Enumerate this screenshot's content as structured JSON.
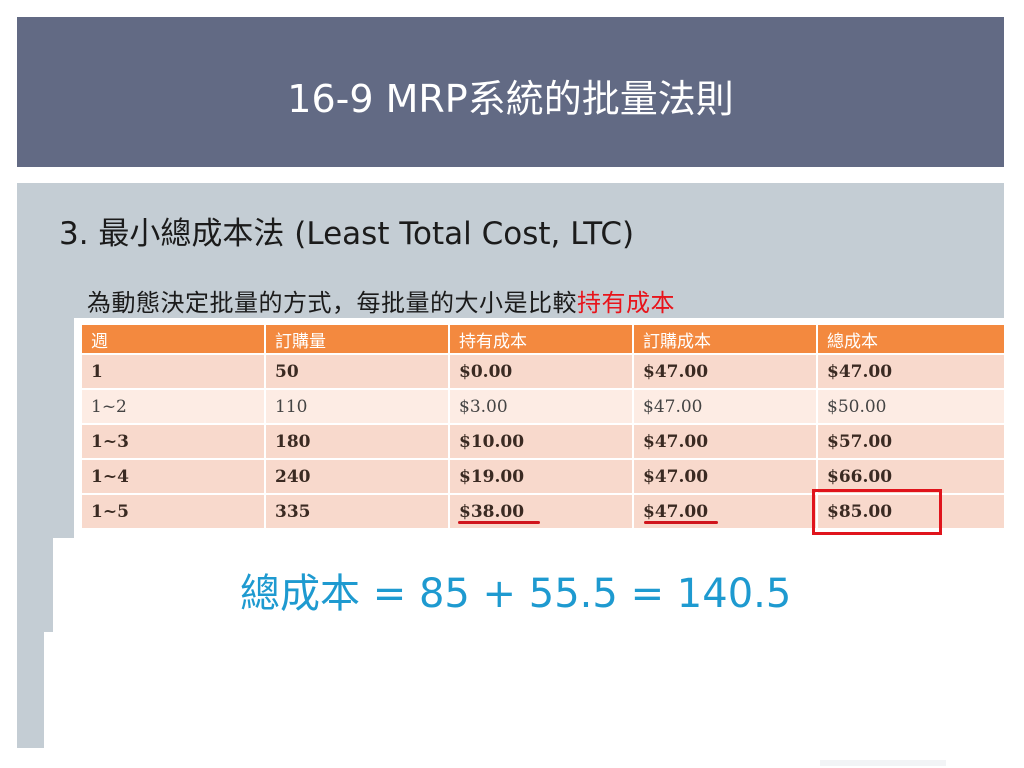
{
  "slide": {
    "title": "16-9 MRP系統的批量法則",
    "heading": "3. 最小總成本法 (Least Total Cost, LTC)",
    "paragraph_normal": "為動態決定批量的方式，每批量的大小是比較",
    "paragraph_highlight": "持有成本",
    "formula": "總成本 = 85 + 55.5 = 140.5"
  },
  "table": {
    "headers": [
      "週",
      "訂購量",
      "持有成本",
      "訂購成本",
      "總成本"
    ],
    "rows": [
      [
        "1",
        "50",
        "$0.00",
        "$47.00",
        "$47.00"
      ],
      [
        "1~2",
        "110",
        "$3.00",
        "$47.00",
        "$50.00"
      ],
      [
        "1~3",
        "180",
        "$10.00",
        "$47.00",
        "$57.00"
      ],
      [
        "1~4",
        "240",
        "$19.00",
        "$47.00",
        "$66.00"
      ],
      [
        "1~5",
        "335",
        "$38.00",
        "$47.00",
        "$85.00"
      ]
    ]
  },
  "colors": {
    "title_bar": "#626a84",
    "panel": "#c4cdd4",
    "table_header": "#f3893f",
    "highlight_red": "#e8141b",
    "formula_blue": "#1e9ad0"
  }
}
